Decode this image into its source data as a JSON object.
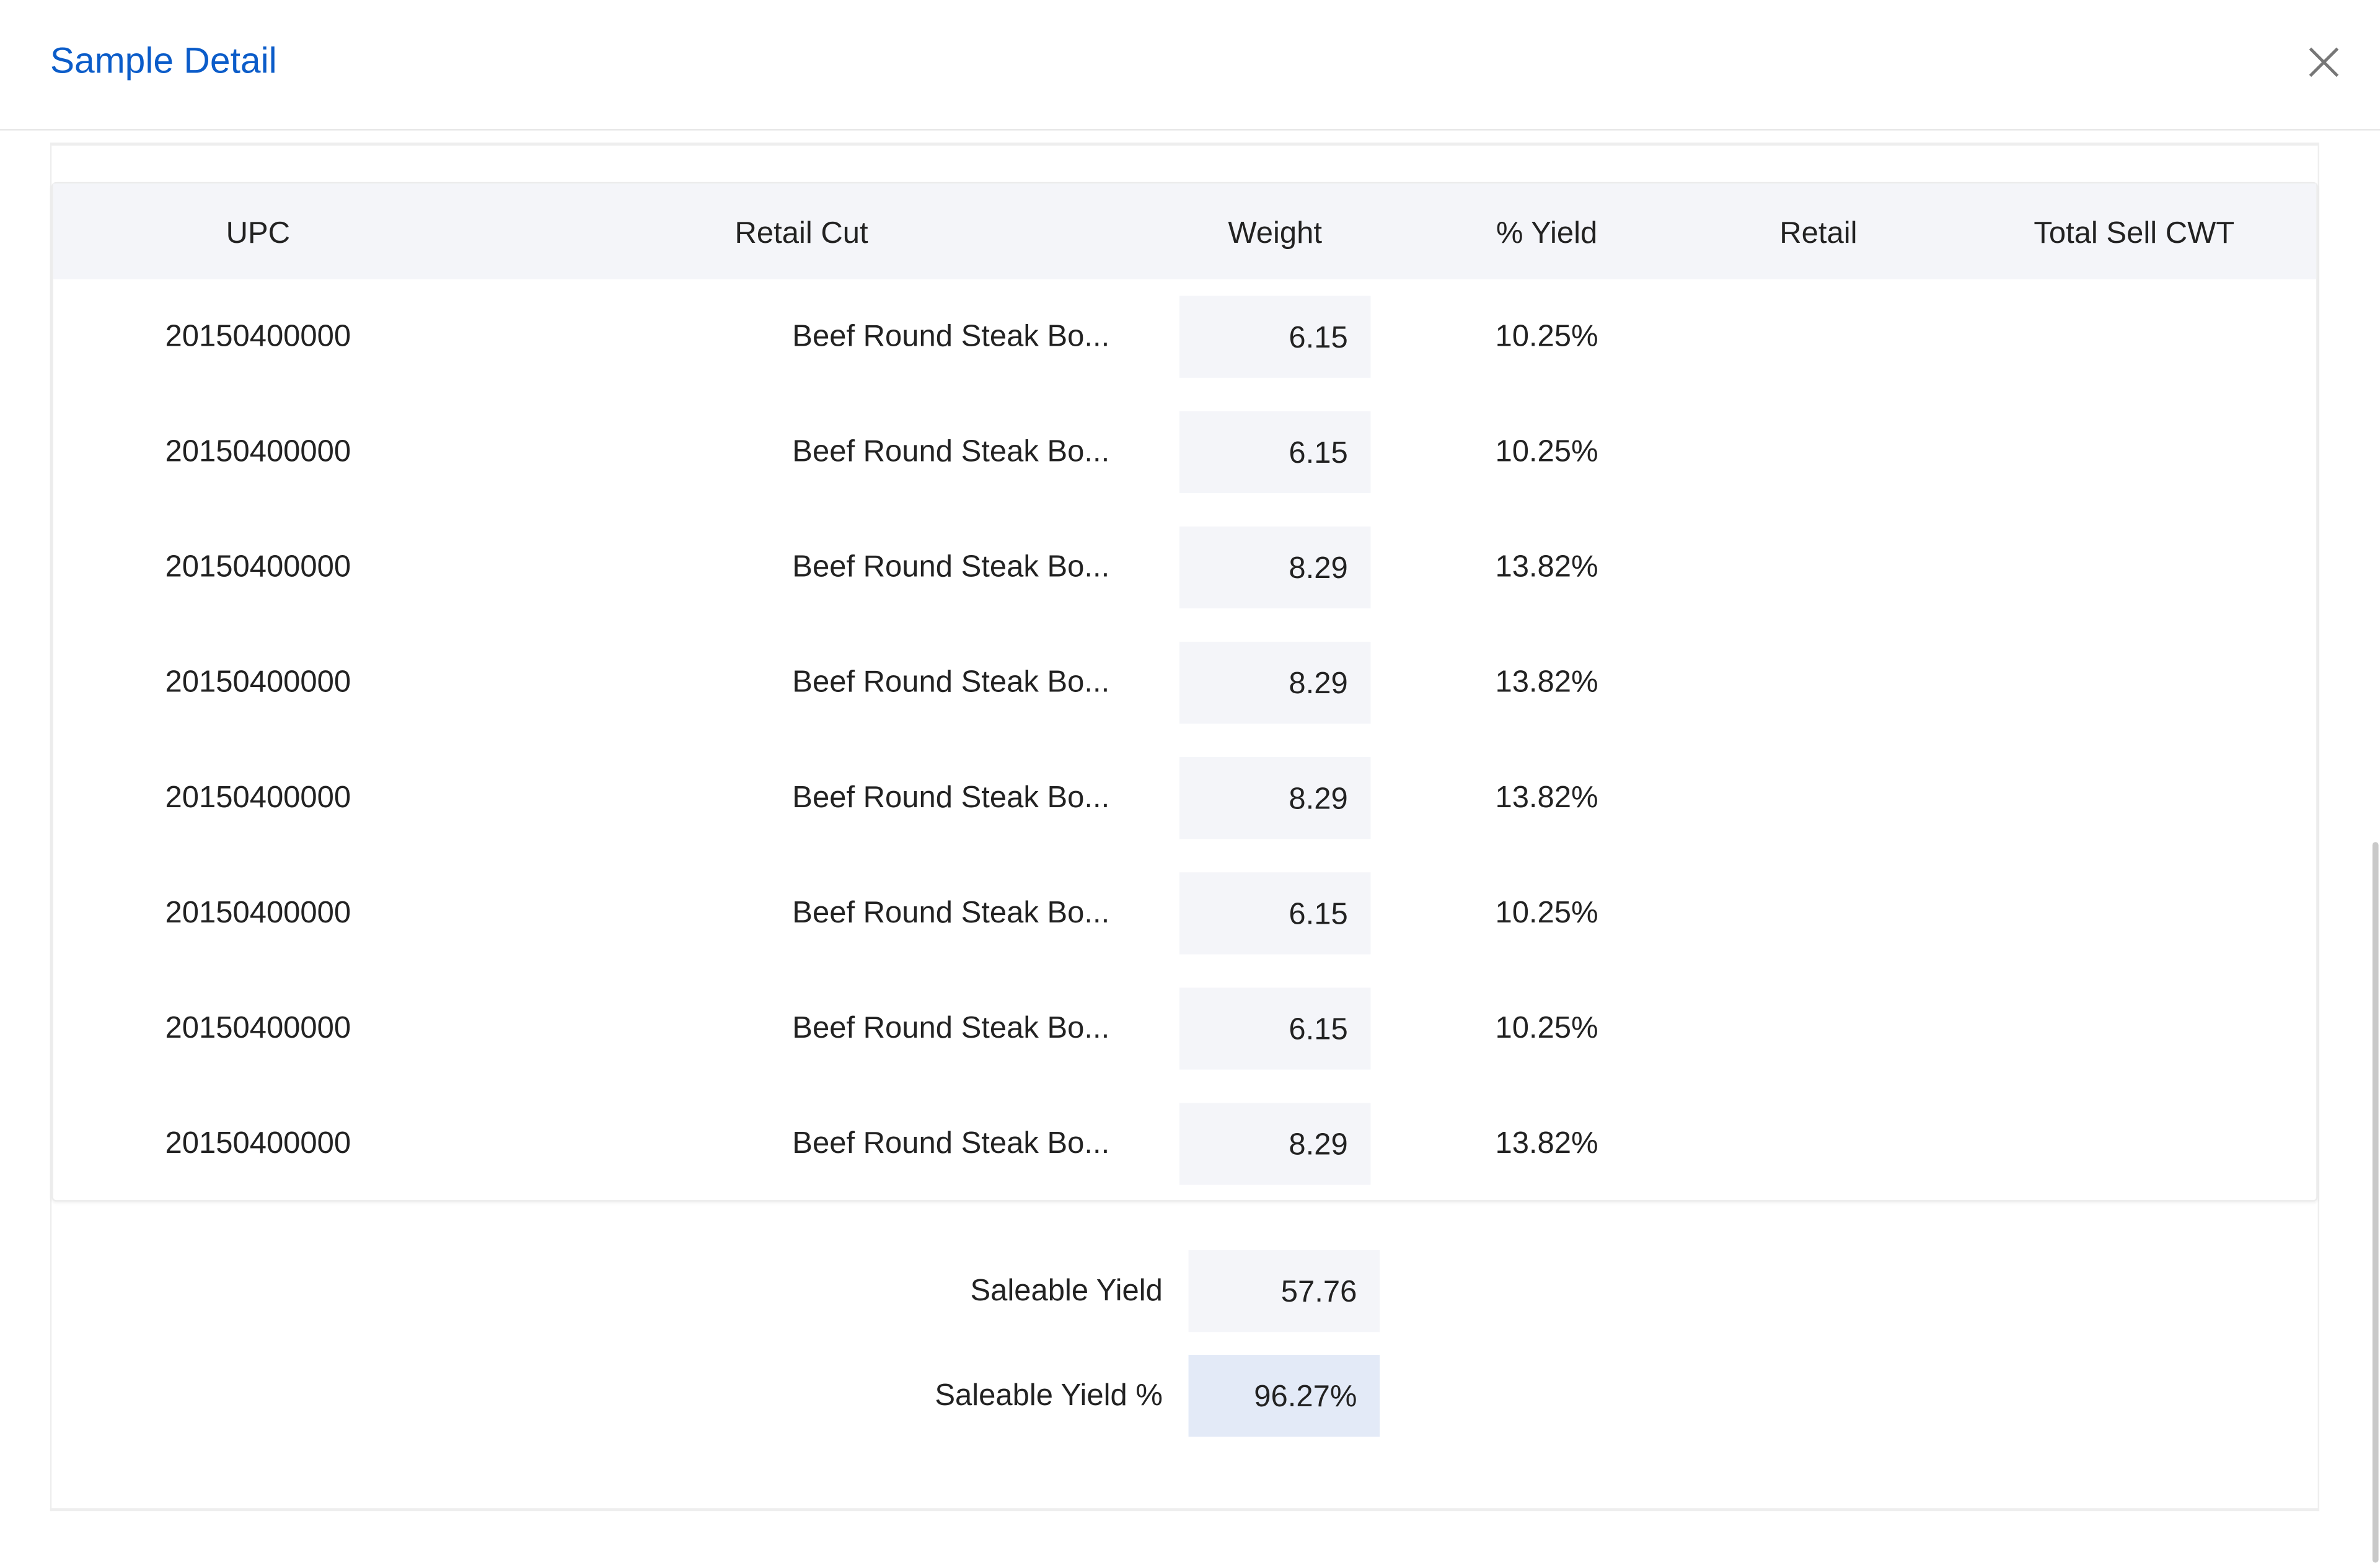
{
  "dialog": {
    "title": "Sample Detail",
    "close_icon": "close-icon"
  },
  "table": {
    "headers": [
      "UPC",
      "Retail Cut",
      "Weight",
      "% Yield",
      "Retail",
      "Total Sell CWT"
    ],
    "rows": [
      {
        "upc": "20150400000",
        "retail_cut": "Beef Round Steak Bo...",
        "weight": "6.15",
        "yield": "10.25%",
        "retail": "",
        "total_sell_cwt": ""
      },
      {
        "upc": "20150400000",
        "retail_cut": "Beef Round Steak Bo...",
        "weight": "6.15",
        "yield": "10.25%",
        "retail": "",
        "total_sell_cwt": ""
      },
      {
        "upc": "20150400000",
        "retail_cut": "Beef Round Steak Bo...",
        "weight": "8.29",
        "yield": "13.82%",
        "retail": "",
        "total_sell_cwt": ""
      },
      {
        "upc": "20150400000",
        "retail_cut": "Beef Round Steak Bo...",
        "weight": "8.29",
        "yield": "13.82%",
        "retail": "",
        "total_sell_cwt": ""
      },
      {
        "upc": "20150400000",
        "retail_cut": "Beef Round Steak Bo...",
        "weight": "8.29",
        "yield": "13.82%",
        "retail": "",
        "total_sell_cwt": ""
      },
      {
        "upc": "20150400000",
        "retail_cut": "Beef Round Steak Bo...",
        "weight": "6.15",
        "yield": "10.25%",
        "retail": "",
        "total_sell_cwt": ""
      },
      {
        "upc": "20150400000",
        "retail_cut": "Beef Round Steak Bo...",
        "weight": "6.15",
        "yield": "10.25%",
        "retail": "",
        "total_sell_cwt": ""
      },
      {
        "upc": "20150400000",
        "retail_cut": "Beef Round Steak Bo...",
        "weight": "8.29",
        "yield": "13.82%",
        "retail": "",
        "total_sell_cwt": ""
      }
    ]
  },
  "summary": {
    "saleable_yield_label": "Saleable Yield",
    "saleable_yield_value": "57.76",
    "saleable_yield_pct_label": "Saleable Yield %",
    "saleable_yield_pct_value": "96.27%"
  },
  "colors": {
    "accent": "#0b5cc9",
    "header_bg": "#f4f5f9",
    "highlight_bg": "#e3eaf7"
  }
}
